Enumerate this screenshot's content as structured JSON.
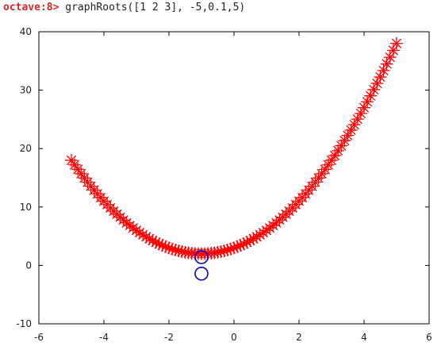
{
  "console": {
    "prompt": "octave:8>",
    "command": "graphRoots([1 2 3], -5,0.1,5)"
  },
  "colors": {
    "prompt": "#d9262b",
    "curve": "#ff0000",
    "roots": "#0000cc",
    "axes": "#000000"
  },
  "chart_data": {
    "type": "scatter",
    "xlim": [
      -6,
      6
    ],
    "ylim": [
      -10,
      40
    ],
    "xticks": [
      -6,
      -4,
      -2,
      0,
      2,
      4,
      6
    ],
    "yticks": [
      -10,
      0,
      10,
      20,
      30,
      40
    ],
    "grid": false,
    "series": [
      {
        "marker": "asterisk",
        "color": "#ff0000",
        "x_start": -5,
        "x_step": 0.1,
        "x_end": 5,
        "polynomial": [
          1,
          2,
          3
        ]
      },
      {
        "marker": "circle",
        "color": "#0000cc",
        "points": [
          [
            -1,
            1.41421
          ],
          [
            -1,
            -1.41421
          ]
        ]
      }
    ]
  }
}
